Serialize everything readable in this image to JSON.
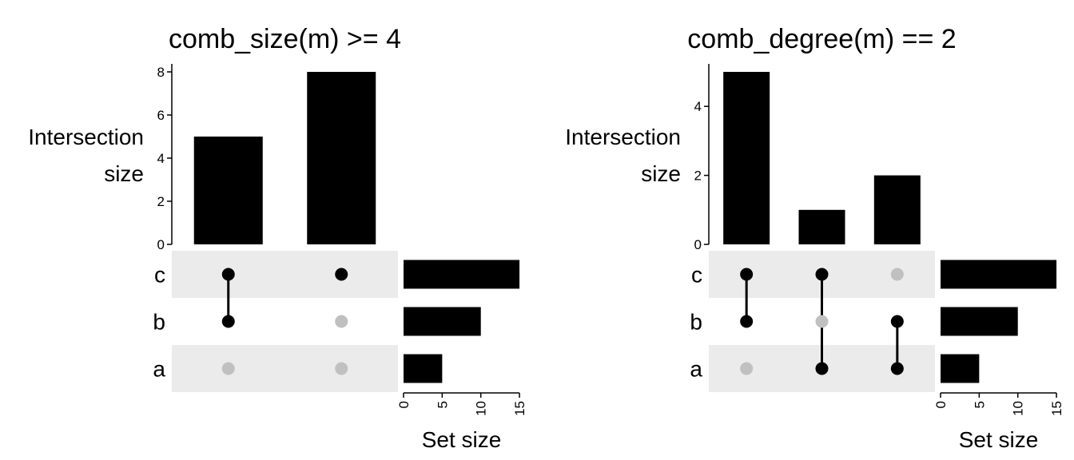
{
  "chart_data": [
    {
      "type": "bar",
      "subtype": "upset",
      "title": "comb_size(m) >= 4",
      "ylabel": "Intersection size",
      "ylabel_lines": [
        "Intersection",
        "size"
      ],
      "ylim": [
        0,
        8
      ],
      "yticks": [
        0,
        2,
        4,
        6,
        8
      ],
      "sets": [
        "c",
        "b",
        "a"
      ],
      "combinations": [
        {
          "members": [
            true,
            true,
            false
          ],
          "size": 5
        },
        {
          "members": [
            true,
            false,
            false
          ],
          "size": 8
        }
      ],
      "set_sizes": [
        15,
        10,
        5
      ],
      "set_size_label": "Set size",
      "set_size_ticks": [
        0,
        5,
        10,
        15
      ],
      "set_size_max": 15
    },
    {
      "type": "bar",
      "subtype": "upset",
      "title": "comb_degree(m) == 2",
      "ylabel": "Intersection size",
      "ylabel_lines": [
        "Intersection",
        "size"
      ],
      "ylim": [
        0,
        5
      ],
      "yticks": [
        0,
        2,
        4
      ],
      "sets": [
        "c",
        "b",
        "a"
      ],
      "combinations": [
        {
          "members": [
            true,
            true,
            false
          ],
          "size": 5
        },
        {
          "members": [
            true,
            false,
            true
          ],
          "size": 1
        },
        {
          "members": [
            false,
            true,
            true
          ],
          "size": 2
        }
      ],
      "set_sizes": [
        15,
        10,
        5
      ],
      "set_size_label": "Set size",
      "set_size_ticks": [
        0,
        5,
        10,
        15
      ],
      "set_size_max": 15
    }
  ],
  "colors": {
    "bar": "#000000",
    "dot_on": "#000000",
    "dot_off": "#c0c0c0",
    "row_shade": "#ebebeb"
  }
}
